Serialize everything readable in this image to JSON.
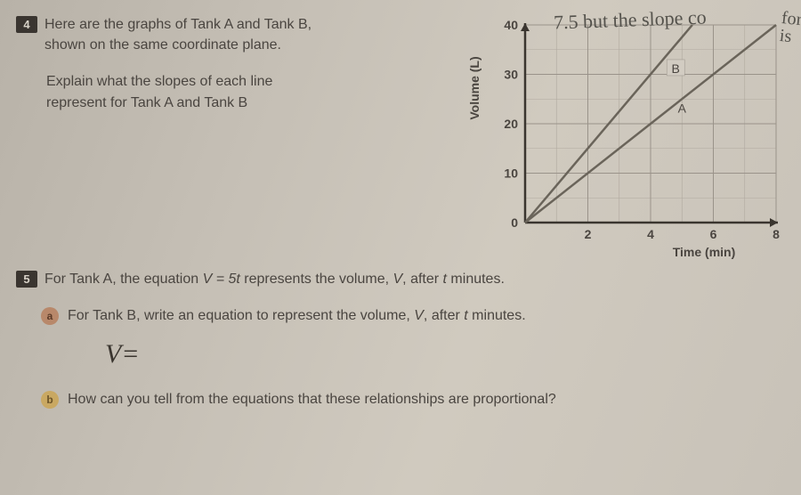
{
  "q4": {
    "number": "4",
    "text_line1": "Here are the graphs of Tank A and Tank B,",
    "text_line2": "shown on the same coordinate plane.",
    "sub_line1": "Explain what the slopes of each line",
    "sub_line2": "represent for Tank A and Tank B"
  },
  "chart": {
    "type": "line",
    "ylabel": "Volume (L)",
    "xlabel": "Time (min)",
    "xlim": [
      0,
      8
    ],
    "ylim": [
      0,
      40
    ],
    "xtick_step": 2,
    "ytick_step": 10,
    "xticks": [
      0,
      2,
      4,
      6,
      8
    ],
    "yticks": [
      0,
      10,
      20,
      30,
      40
    ],
    "minor_grid": true,
    "grid_color": "#9a938a",
    "minor_grid_color": "#b0a99f",
    "axis_color": "#3a352f",
    "background_color": "#c8c2b8",
    "label_color": "#4a4540",
    "label_fontsize": 14,
    "tick_fontsize": 14,
    "series": [
      {
        "name": "A",
        "label": "A",
        "slope_per_min": 5,
        "points": [
          [
            0,
            0
          ],
          [
            8,
            40
          ]
        ],
        "label_pos": [
          5,
          23
        ],
        "color": "#6a645a",
        "line_width": 2.5
      },
      {
        "name": "B",
        "label": "B",
        "slope_per_min": 7.5,
        "points": [
          [
            0,
            0
          ],
          [
            5.33,
            40
          ]
        ],
        "label_pos": [
          4.8,
          31
        ],
        "line_label_box_bg": "#d2ccc2",
        "color": "#6a645a",
        "line_width": 2.5
      }
    ]
  },
  "handwriting": {
    "top": "7.5 but the slope co",
    "side": "for is"
  },
  "q5": {
    "number": "5",
    "intro_1": "For Tank A, the equation ",
    "intro_eq": "V = 5t",
    "intro_2": " represents the volume, ",
    "intro_var": "V",
    "intro_3": ", after ",
    "intro_t": "t",
    "intro_4": " minutes.",
    "a_label": "a",
    "a_1": "For Tank B, write an equation to represent the volume, ",
    "a_var": "V",
    "a_2": ", after ",
    "a_t": "t",
    "a_3": " minutes.",
    "student_eq": "V=",
    "b_label": "b",
    "b_text": "How can you tell from the equations that these relationships are proportional?"
  }
}
